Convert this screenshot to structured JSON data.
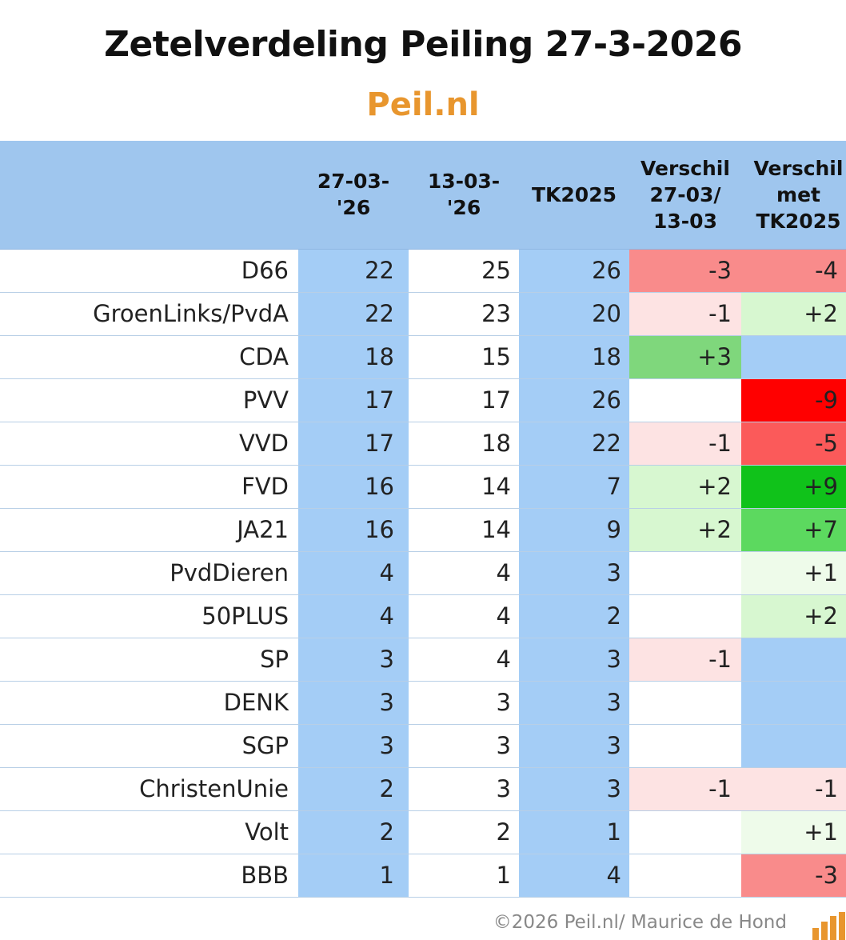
{
  "title": "Zetelverdeling Peiling 27-3-2026",
  "subtitle": "Peil.nl",
  "chart_data": {
    "type": "table",
    "columns": [
      "",
      "27-03-'26",
      "13-03-'26",
      "TK2025",
      "Verschil 27-03/ 13-03",
      "Verschil met TK2025"
    ],
    "header_lines": [
      [],
      [
        "27-03-",
        "'26"
      ],
      [
        "13-03-",
        "'26"
      ],
      [
        "TK2025"
      ],
      [
        "Verschil",
        "27-03/",
        "13-03"
      ],
      [
        "Verschil",
        "met",
        "TK2025"
      ]
    ],
    "rows": [
      {
        "party": "D66",
        "p27": "22",
        "p13": "25",
        "tk": "26",
        "diff1": "-3",
        "diff2": "-4"
      },
      {
        "party": "GroenLinks/PvdA",
        "p27": "22",
        "p13": "23",
        "tk": "20",
        "diff1": "-1",
        "diff2": "+2"
      },
      {
        "party": "CDA",
        "p27": "18",
        "p13": "15",
        "tk": "18",
        "diff1": "+3",
        "diff2": ""
      },
      {
        "party": "PVV",
        "p27": "17",
        "p13": "17",
        "tk": "26",
        "diff1": "",
        "diff2": "-9"
      },
      {
        "party": "VVD",
        "p27": "17",
        "p13": "18",
        "tk": "22",
        "diff1": "-1",
        "diff2": "-5"
      },
      {
        "party": "FVD",
        "p27": "16",
        "p13": "14",
        "tk": "7",
        "diff1": "+2",
        "diff2": "+9"
      },
      {
        "party": "JA21",
        "p27": "16",
        "p13": "14",
        "tk": "9",
        "diff1": "+2",
        "diff2": "+7"
      },
      {
        "party": "PvdDieren",
        "p27": "4",
        "p13": "4",
        "tk": "3",
        "diff1": "",
        "diff2": "+1"
      },
      {
        "party": "50PLUS",
        "p27": "4",
        "p13": "4",
        "tk": "2",
        "diff1": "",
        "diff2": "+2"
      },
      {
        "party": "SP",
        "p27": "3",
        "p13": "4",
        "tk": "3",
        "diff1": "-1",
        "diff2": ""
      },
      {
        "party": "DENK",
        "p27": "3",
        "p13": "3",
        "tk": "3",
        "diff1": "",
        "diff2": ""
      },
      {
        "party": "SGP",
        "p27": "3",
        "p13": "3",
        "tk": "3",
        "diff1": "",
        "diff2": ""
      },
      {
        "party": "ChristenUnie",
        "p27": "2",
        "p13": "3",
        "tk": "3",
        "diff1": "-1",
        "diff2": "-1"
      },
      {
        "party": "Volt",
        "p27": "2",
        "p13": "2",
        "tk": "1",
        "diff1": "",
        "diff2": "+1"
      },
      {
        "party": "BBB",
        "p27": "1",
        "p13": "1",
        "tk": "4",
        "diff1": "",
        "diff2": "-3"
      }
    ],
    "colors": {
      "header_bg": "#9fc6ee",
      "column_blue": "#a4cdf6",
      "title_orange": "#e8962e"
    }
  },
  "footer": "©2026 Peil.nl/ Maurice de Hond"
}
